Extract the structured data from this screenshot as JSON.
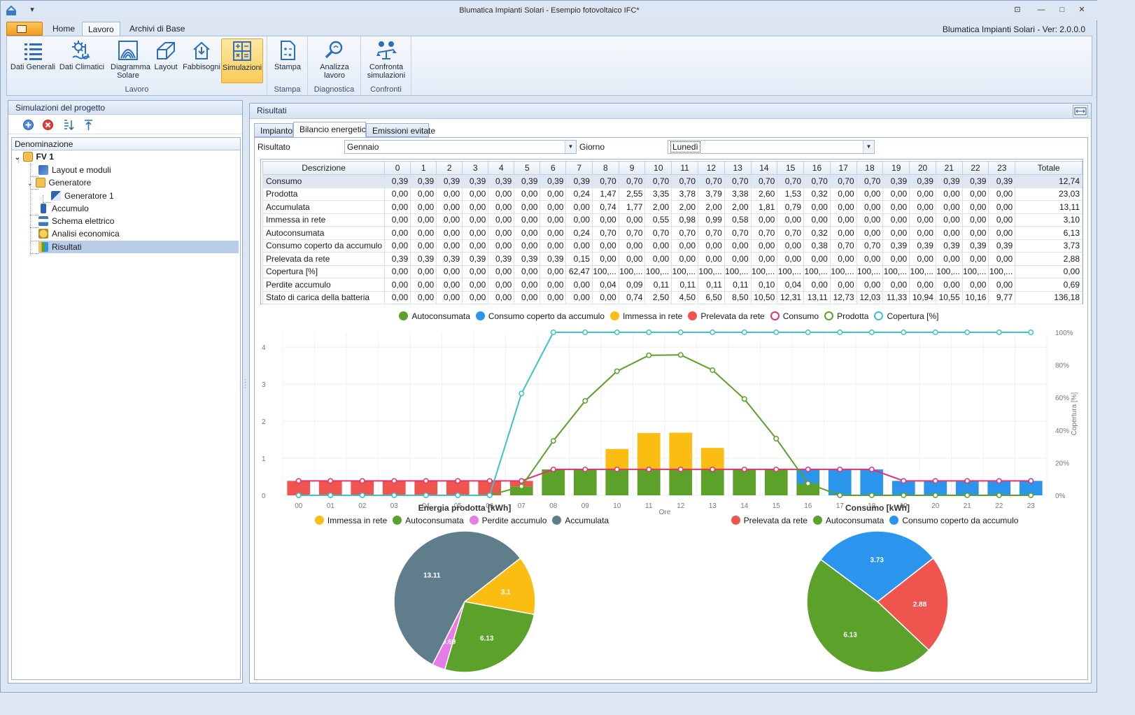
{
  "window": {
    "title": "Blumatica Impianti Solari - Esempio fotovoltaico IFC*",
    "version": "Blumatica Impianti Solari - Ver: 2.0.0.0"
  },
  "ribbon": {
    "tabs": [
      "Home",
      "Lavoro",
      "Archivi di Base"
    ],
    "groups": [
      {
        "name": "Lavoro",
        "buttons": [
          {
            "label": "Dati Generali",
            "icon": "list-icon"
          },
          {
            "label": "Dati Climatici",
            "icon": "climate-icon"
          },
          {
            "label": "Diagramma Solare",
            "icon": "solar-diagram-icon"
          },
          {
            "label": "Layout",
            "icon": "layout-icon"
          },
          {
            "label": "Fabbisogni",
            "icon": "house-icon"
          },
          {
            "label": "Simulazioni",
            "icon": "calculator-icon"
          }
        ]
      },
      {
        "name": "Stampa",
        "buttons": [
          {
            "label": "Stampa",
            "icon": "document-icon"
          }
        ]
      },
      {
        "name": "Diagnostica",
        "buttons": [
          {
            "label": "Analizza lavoro",
            "icon": "analyze-icon"
          }
        ]
      },
      {
        "name": "Confronti",
        "buttons": [
          {
            "label": "Confronta simulazioni",
            "icon": "compare-icon"
          }
        ]
      }
    ]
  },
  "left": {
    "title": "Simulazioni del progetto",
    "column": "Denominazione",
    "tree": [
      {
        "label": "FV 1"
      },
      {
        "label": "Layout e moduli"
      },
      {
        "label": "Generatore"
      },
      {
        "label": "Generatore 1"
      },
      {
        "label": "Accumulo"
      },
      {
        "label": "Schema elettrico"
      },
      {
        "label": "Analisi economica"
      },
      {
        "label": "Risultati"
      }
    ]
  },
  "right": {
    "title": "Risultati",
    "tabs": [
      "Impianto",
      "Bilancio energetico",
      "Emissioni evitate"
    ],
    "risultato_label": "Risultato",
    "risultato_value": "Gennaio",
    "giorno_label": "Giorno",
    "giorno_value": "Lunedì"
  },
  "table": {
    "headers": [
      "Descrizione",
      "0",
      "1",
      "2",
      "3",
      "4",
      "5",
      "6",
      "7",
      "8",
      "9",
      "10",
      "11",
      "12",
      "13",
      "14",
      "15",
      "16",
      "17",
      "18",
      "19",
      "20",
      "21",
      "22",
      "23",
      "Totale"
    ],
    "rows": [
      [
        "Consumo",
        "0,39",
        "0,39",
        "0,39",
        "0,39",
        "0,39",
        "0,39",
        "0,39",
        "0,39",
        "0,70",
        "0,70",
        "0,70",
        "0,70",
        "0,70",
        "0,70",
        "0,70",
        "0,70",
        "0,70",
        "0,70",
        "0,70",
        "0,39",
        "0,39",
        "0,39",
        "0,39",
        "0,39",
        "12,74"
      ],
      [
        "Prodotta",
        "0,00",
        "0,00",
        "0,00",
        "0,00",
        "0,00",
        "0,00",
        "0,00",
        "0,24",
        "1,47",
        "2,55",
        "3,35",
        "3,78",
        "3,79",
        "3,38",
        "2,60",
        "1,53",
        "0,32",
        "0,00",
        "0,00",
        "0,00",
        "0,00",
        "0,00",
        "0,00",
        "0,00",
        "23,03"
      ],
      [
        "Accumulata",
        "0,00",
        "0,00",
        "0,00",
        "0,00",
        "0,00",
        "0,00",
        "0,00",
        "0,00",
        "0,74",
        "1,77",
        "2,00",
        "2,00",
        "2,00",
        "2,00",
        "1,81",
        "0,79",
        "0,00",
        "0,00",
        "0,00",
        "0,00",
        "0,00",
        "0,00",
        "0,00",
        "0,00",
        "13,11"
      ],
      [
        "Immessa in rete",
        "0,00",
        "0,00",
        "0,00",
        "0,00",
        "0,00",
        "0,00",
        "0,00",
        "0,00",
        "0,00",
        "0,00",
        "0,55",
        "0,98",
        "0,99",
        "0,58",
        "0,00",
        "0,00",
        "0,00",
        "0,00",
        "0,00",
        "0,00",
        "0,00",
        "0,00",
        "0,00",
        "0,00",
        "3,10"
      ],
      [
        "Autoconsumata",
        "0,00",
        "0,00",
        "0,00",
        "0,00",
        "0,00",
        "0,00",
        "0,00",
        "0,24",
        "0,70",
        "0,70",
        "0,70",
        "0,70",
        "0,70",
        "0,70",
        "0,70",
        "0,70",
        "0,32",
        "0,00",
        "0,00",
        "0,00",
        "0,00",
        "0,00",
        "0,00",
        "0,00",
        "6,13"
      ],
      [
        "Consumo coperto da accumulo",
        "0,00",
        "0,00",
        "0,00",
        "0,00",
        "0,00",
        "0,00",
        "0,00",
        "0,00",
        "0,00",
        "0,00",
        "0,00",
        "0,00",
        "0,00",
        "0,00",
        "0,00",
        "0,00",
        "0,38",
        "0,70",
        "0,70",
        "0,39",
        "0,39",
        "0,39",
        "0,39",
        "0,39",
        "3,73"
      ],
      [
        "Prelevata da rete",
        "0,39",
        "0,39",
        "0,39",
        "0,39",
        "0,39",
        "0,39",
        "0,39",
        "0,15",
        "0,00",
        "0,00",
        "0,00",
        "0,00",
        "0,00",
        "0,00",
        "0,00",
        "0,00",
        "0,00",
        "0,00",
        "0,00",
        "0,00",
        "0,00",
        "0,00",
        "0,00",
        "0,00",
        "2,88"
      ],
      [
        "Copertura [%]",
        "0,00",
        "0,00",
        "0,00",
        "0,00",
        "0,00",
        "0,00",
        "0,00",
        "62,47",
        "100,...",
        "100,...",
        "100,...",
        "100,...",
        "100,...",
        "100,...",
        "100,...",
        "100,...",
        "100,...",
        "100,...",
        "100,...",
        "100,...",
        "100,...",
        "100,...",
        "100,...",
        "100,...",
        "0,00"
      ],
      [
        "Perdite accumulo",
        "0,00",
        "0,00",
        "0,00",
        "0,00",
        "0,00",
        "0,00",
        "0,00",
        "0,00",
        "0,04",
        "0,09",
        "0,11",
        "0,11",
        "0,11",
        "0,11",
        "0,10",
        "0,04",
        "0,00",
        "0,00",
        "0,00",
        "0,00",
        "0,00",
        "0,00",
        "0,00",
        "0,00",
        "0,69"
      ],
      [
        "Stato di carica della batteria",
        "0,00",
        "0,00",
        "0,00",
        "0,00",
        "0,00",
        "0,00",
        "0,00",
        "0,00",
        "0,00",
        "0,74",
        "2,50",
        "4,50",
        "6,50",
        "8,50",
        "10,50",
        "12,31",
        "13,11",
        "12,73",
        "12,03",
        "11,33",
        "10,94",
        "10,55",
        "10,16",
        "9,77",
        "136,18"
      ]
    ]
  },
  "chart_data": [
    {
      "type": "bar",
      "x": [
        "00",
        "01",
        "02",
        "03",
        "04",
        "05",
        "06",
        "07",
        "08",
        "09",
        "10",
        "11",
        "12",
        "13",
        "14",
        "15",
        "16",
        "17",
        "18",
        "19",
        "20",
        "21",
        "22",
        "23"
      ],
      "xlabel": "Ore",
      "ylabel": "",
      "y2label": "Copertura [%]",
      "ylim": [
        0,
        4.4
      ],
      "y2lim": [
        0,
        100
      ],
      "yticks": [
        "0",
        "1",
        "2",
        "3",
        "4"
      ],
      "y2ticks": [
        "0%",
        "20%",
        "40%",
        "60%",
        "80%",
        "100%"
      ],
      "legend": "top",
      "series": [
        {
          "name": "Autoconsumata",
          "kind": "stacked-bar",
          "color": "#5ba12a",
          "values": [
            0,
            0,
            0,
            0,
            0,
            0,
            0,
            0.24,
            0.7,
            0.7,
            0.7,
            0.7,
            0.7,
            0.7,
            0.7,
            0.7,
            0.32,
            0,
            0,
            0,
            0,
            0,
            0,
            0
          ]
        },
        {
          "name": "Consumo coperto da accumulo",
          "kind": "stacked-bar",
          "color": "#2b95ee",
          "values": [
            0,
            0,
            0,
            0,
            0,
            0,
            0,
            0,
            0,
            0,
            0,
            0,
            0,
            0,
            0,
            0,
            0.38,
            0.7,
            0.7,
            0.39,
            0.39,
            0.39,
            0.39,
            0.39
          ]
        },
        {
          "name": "Immessa in rete",
          "kind": "stacked-bar",
          "color": "#fbbd12",
          "values": [
            0,
            0,
            0,
            0,
            0,
            0,
            0,
            0,
            0,
            0,
            0.55,
            0.98,
            0.99,
            0.58,
            0,
            0,
            0,
            0,
            0,
            0,
            0,
            0,
            0,
            0
          ]
        },
        {
          "name": "Prelevata da rete",
          "kind": "stacked-bar",
          "color": "#f0544f",
          "values": [
            0.39,
            0.39,
            0.39,
            0.39,
            0.39,
            0.39,
            0.39,
            0.15,
            0,
            0,
            0,
            0,
            0,
            0,
            0,
            0,
            0,
            0,
            0,
            0,
            0,
            0,
            0,
            0
          ]
        },
        {
          "name": "Consumo",
          "kind": "line",
          "color": "#e8316f",
          "values": [
            0.39,
            0.39,
            0.39,
            0.39,
            0.39,
            0.39,
            0.39,
            0.39,
            0.7,
            0.7,
            0.7,
            0.7,
            0.7,
            0.7,
            0.7,
            0.7,
            0.7,
            0.7,
            0.7,
            0.39,
            0.39,
            0.39,
            0.39,
            0.39
          ]
        },
        {
          "name": "Prodotta",
          "kind": "line",
          "color": "#5ba12a",
          "values": [
            0,
            0,
            0,
            0,
            0,
            0,
            0,
            0.24,
            1.47,
            2.55,
            3.35,
            3.78,
            3.79,
            3.38,
            2.6,
            1.53,
            0.32,
            0,
            0,
            0,
            0,
            0,
            0,
            0
          ]
        },
        {
          "name": "Copertura [%]",
          "kind": "line-y2",
          "color": "#3bc4c8",
          "values": [
            0,
            0,
            0,
            0,
            0,
            0,
            0,
            62.47,
            100,
            100,
            100,
            100,
            100,
            100,
            100,
            100,
            100,
            100,
            100,
            100,
            100,
            100,
            100,
            100
          ]
        }
      ]
    },
    {
      "type": "pie",
      "title": "Energia prodotta [kWh]",
      "legend": "top",
      "labels": [
        "Immessa in rete",
        "Autoconsumata",
        "Perdite accumulo",
        "Accumulata"
      ],
      "values": [
        3.1,
        6.13,
        0.69,
        13.11
      ],
      "colors": [
        "#fbbd12",
        "#5ba12a",
        "#e77ce6",
        "#607d8b"
      ],
      "data_labels": [
        "3.1",
        "6.13",
        "0.69",
        "13.11"
      ]
    },
    {
      "type": "pie",
      "title": "Consumo [kWh]",
      "legend": "top",
      "labels": [
        "Prelevata da rete",
        "Autoconsumata",
        "Consumo coperto da accumulo"
      ],
      "values": [
        2.88,
        6.13,
        3.73
      ],
      "colors": [
        "#f0544f",
        "#5ba12a",
        "#2b95ee"
      ],
      "data_labels": [
        "2.88",
        "6.13",
        "3.73"
      ]
    }
  ]
}
